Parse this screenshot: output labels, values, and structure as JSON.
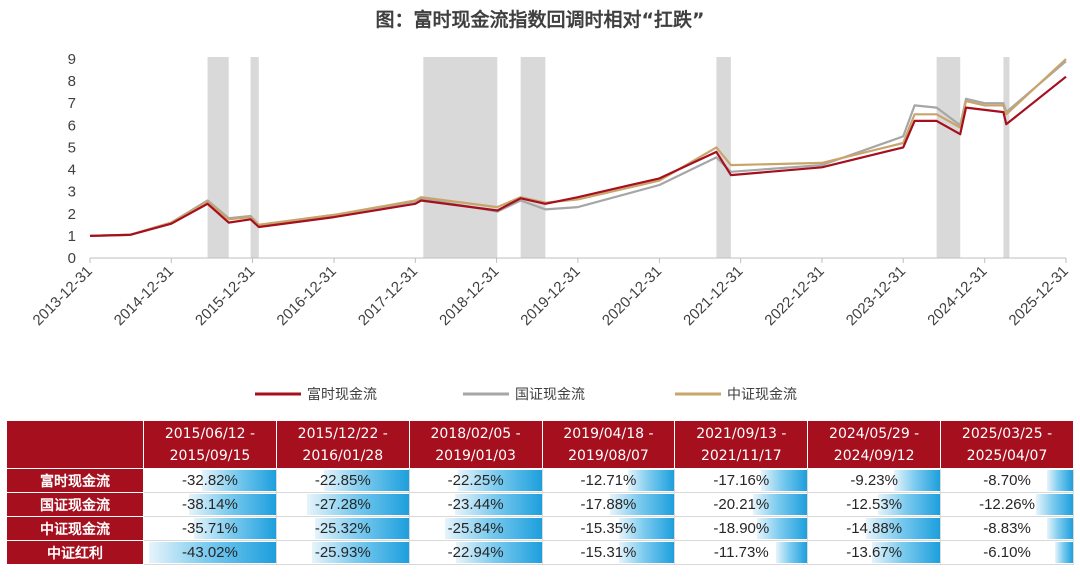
{
  "chart_data": {
    "type": "line",
    "title": "图：富时现金流指数回调时相对“扛跌”",
    "ylim": [
      0,
      9
    ],
    "yticks": [
      "0",
      "1",
      "2",
      "3",
      "4",
      "5",
      "6",
      "7",
      "8",
      "9"
    ],
    "xticks": [
      "2013-12-31",
      "2014-12-31",
      "2015-12-31",
      "2016-12-31",
      "2017-12-31",
      "2018-12-31",
      "2019-12-31",
      "2020-12-31",
      "2021-12-31",
      "2022-12-31",
      "2023-12-31",
      "2024-12-31",
      "2025-12-31"
    ],
    "grid": false,
    "legend": "bottom",
    "shaded_periods": [
      [
        "2015/06/12",
        "2015/09/15"
      ],
      [
        "2015/12/22",
        "2016/01/28"
      ],
      [
        "2018/02/05",
        "2019/01/03"
      ],
      [
        "2019/04/18",
        "2019/08/07"
      ],
      [
        "2021/09/13",
        "2021/11/17"
      ],
      [
        "2024/05/29",
        "2024/09/12"
      ],
      [
        "2025/03/25",
        "2025/04/07"
      ]
    ],
    "series": [
      {
        "name": "富时现金流",
        "color": "#a50f1e",
        "points": [
          [
            "2013-12-31",
            1.0
          ],
          [
            "2014-06-30",
            1.05
          ],
          [
            "2014-12-31",
            1.55
          ],
          [
            "2015-06-12",
            2.45
          ],
          [
            "2015-09-15",
            1.6
          ],
          [
            "2015-12-22",
            1.75
          ],
          [
            "2016-01-28",
            1.4
          ],
          [
            "2016-12-31",
            1.85
          ],
          [
            "2017-12-31",
            2.45
          ],
          [
            "2018-01-26",
            2.6
          ],
          [
            "2019-01-03",
            2.15
          ],
          [
            "2019-04-18",
            2.7
          ],
          [
            "2019-08-07",
            2.45
          ],
          [
            "2019-12-31",
            2.75
          ],
          [
            "2020-12-31",
            3.6
          ],
          [
            "2021-09-13",
            4.8
          ],
          [
            "2021-11-17",
            3.75
          ],
          [
            "2022-12-31",
            4.1
          ],
          [
            "2023-12-31",
            5.0
          ],
          [
            "2024-02-20",
            6.2
          ],
          [
            "2024-05-29",
            6.2
          ],
          [
            "2024-09-12",
            5.6
          ],
          [
            "2024-10-08",
            6.8
          ],
          [
            "2024-12-31",
            6.7
          ],
          [
            "2025-03-25",
            6.6
          ],
          [
            "2025-04-07",
            6.05
          ],
          [
            "2025-12-31",
            8.2
          ]
        ]
      },
      {
        "name": "国证现金流",
        "color": "#a6a6a6",
        "points": [
          [
            "2013-12-31",
            1.0
          ],
          [
            "2014-06-30",
            1.05
          ],
          [
            "2014-12-31",
            1.6
          ],
          [
            "2015-06-12",
            2.6
          ],
          [
            "2015-09-15",
            1.8
          ],
          [
            "2015-12-22",
            1.9
          ],
          [
            "2016-01-28",
            1.5
          ],
          [
            "2016-12-31",
            1.95
          ],
          [
            "2017-12-31",
            2.55
          ],
          [
            "2018-01-26",
            2.7
          ],
          [
            "2019-01-03",
            2.1
          ],
          [
            "2019-04-18",
            2.6
          ],
          [
            "2019-08-07",
            2.2
          ],
          [
            "2019-12-31",
            2.3
          ],
          [
            "2020-12-31",
            3.3
          ],
          [
            "2021-09-13",
            4.55
          ],
          [
            "2021-11-17",
            3.9
          ],
          [
            "2022-12-31",
            4.2
          ],
          [
            "2023-12-31",
            5.5
          ],
          [
            "2024-02-20",
            6.9
          ],
          [
            "2024-05-29",
            6.8
          ],
          [
            "2024-09-12",
            6.0
          ],
          [
            "2024-10-08",
            7.2
          ],
          [
            "2024-12-31",
            7.0
          ],
          [
            "2025-03-25",
            7.0
          ],
          [
            "2025-04-07",
            6.6
          ],
          [
            "2025-12-31",
            8.9
          ]
        ]
      },
      {
        "name": "中证现金流",
        "color": "#c9a46b",
        "points": [
          [
            "2013-12-31",
            1.0
          ],
          [
            "2014-06-30",
            1.05
          ],
          [
            "2014-12-31",
            1.6
          ],
          [
            "2015-06-12",
            2.55
          ],
          [
            "2015-09-15",
            1.75
          ],
          [
            "2015-12-22",
            1.85
          ],
          [
            "2016-01-28",
            1.5
          ],
          [
            "2016-12-31",
            1.95
          ],
          [
            "2017-12-31",
            2.6
          ],
          [
            "2018-01-26",
            2.75
          ],
          [
            "2019-01-03",
            2.3
          ],
          [
            "2019-04-18",
            2.75
          ],
          [
            "2019-08-07",
            2.5
          ],
          [
            "2019-12-31",
            2.65
          ],
          [
            "2020-12-31",
            3.5
          ],
          [
            "2021-09-13",
            5.0
          ],
          [
            "2021-11-17",
            4.2
          ],
          [
            "2022-12-31",
            4.3
          ],
          [
            "2023-12-31",
            5.2
          ],
          [
            "2024-02-20",
            6.5
          ],
          [
            "2024-05-29",
            6.5
          ],
          [
            "2024-09-12",
            5.9
          ],
          [
            "2024-10-08",
            7.1
          ],
          [
            "2024-12-31",
            6.9
          ],
          [
            "2025-03-25",
            6.9
          ],
          [
            "2025-04-07",
            6.5
          ],
          [
            "2025-12-31",
            9.0
          ]
        ]
      }
    ]
  },
  "table": {
    "periods": [
      [
        "2015/06/12 -",
        "2015/09/15"
      ],
      [
        "2015/12/22 -",
        "2016/01/28"
      ],
      [
        "2018/02/05 -",
        "2019/01/03"
      ],
      [
        "2019/04/18 -",
        "2019/08/07"
      ],
      [
        "2021/09/13 -",
        "2021/11/17"
      ],
      [
        "2024/05/29 -",
        "2024/09/12"
      ],
      [
        "2025/03/25 -",
        "2025/04/07"
      ]
    ],
    "rows": [
      {
        "label": "富时现金流",
        "values": [
          "-32.82%",
          "-22.85%",
          "-22.25%",
          "-12.71%",
          "-17.16%",
          "-9.23%",
          "-8.70%"
        ],
        "fractions": [
          0.56,
          0.64,
          0.63,
          0.35,
          0.35,
          0.35,
          0.2
        ]
      },
      {
        "label": "国证现金流",
        "values": [
          "-38.14%",
          "-27.28%",
          "-23.44%",
          "-17.88%",
          "-20.21%",
          "-12.53%",
          "-12.26%"
        ],
        "fractions": [
          0.66,
          0.77,
          0.66,
          0.49,
          0.41,
          0.47,
          0.28
        ]
      },
      {
        "label": "中证现金流",
        "values": [
          "-35.71%",
          "-25.32%",
          "-25.84%",
          "-15.35%",
          "-18.90%",
          "-14.88%",
          "-8.83%"
        ],
        "fractions": [
          0.62,
          0.71,
          0.73,
          0.42,
          0.38,
          0.56,
          0.2
        ]
      },
      {
        "label": "中证红利",
        "values": [
          "-43.02%",
          "-25.93%",
          "-22.94%",
          "-15.31%",
          "-11.73%",
          "-13.67%",
          "-6.10%"
        ],
        "fractions": [
          0.96,
          0.73,
          0.65,
          0.42,
          0.24,
          0.52,
          0.14
        ]
      }
    ]
  }
}
